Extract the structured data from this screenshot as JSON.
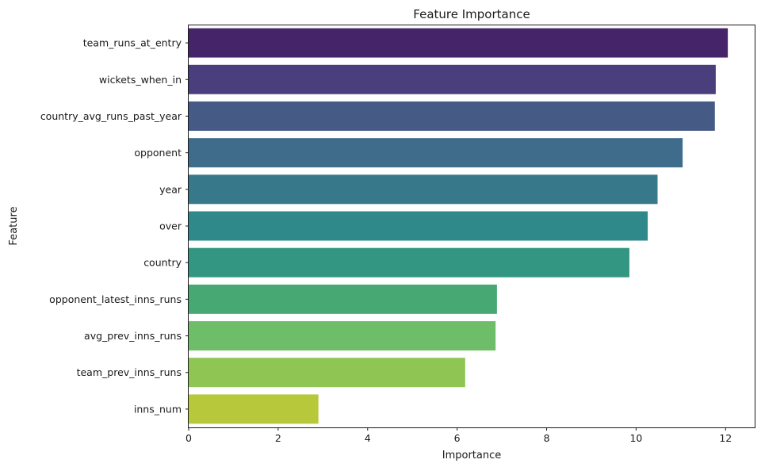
{
  "chart_data": {
    "type": "bar",
    "orientation": "horizontal",
    "title": "Feature Importance",
    "xlabel": "Importance",
    "ylabel": "Feature",
    "categories": [
      "team_runs_at_entry",
      "wickets_when_in",
      "country_avg_runs_past_year",
      "opponent",
      "year",
      "over",
      "country",
      "opponent_latest_inns_runs",
      "avg_prev_inns_runs",
      "team_prev_inns_runs",
      "inns_num"
    ],
    "values": [
      12.05,
      11.78,
      11.76,
      11.04,
      10.48,
      10.26,
      9.85,
      6.89,
      6.86,
      6.18,
      2.9
    ],
    "colors": [
      "#46246a",
      "#4a3f7c",
      "#455a85",
      "#3f6c8a",
      "#37798b",
      "#2f888a",
      "#339682",
      "#47a874",
      "#6dbd69",
      "#8ec553",
      "#b7c83a"
    ],
    "xlim": [
      0,
      12.65
    ],
    "xticks": [
      0,
      2,
      4,
      6,
      8,
      10,
      12
    ],
    "xtick_labels": [
      "0",
      "2",
      "4",
      "6",
      "8",
      "10",
      "12"
    ],
    "grid": false,
    "legend": "none"
  }
}
